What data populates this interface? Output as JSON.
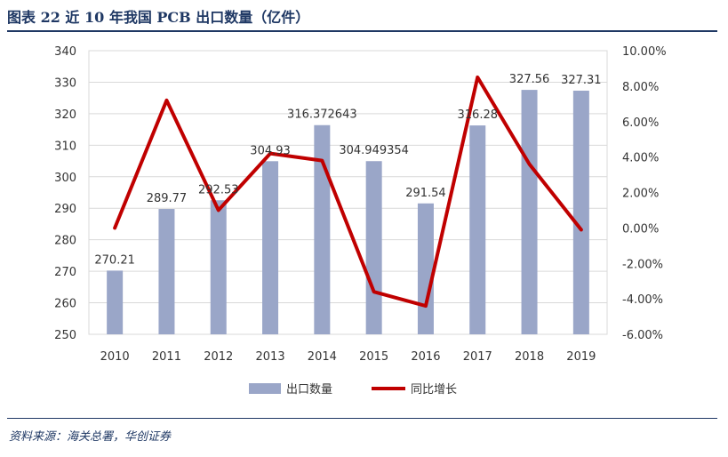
{
  "header": {
    "title": "图表 22  近 10 年我国 PCB 出口数量（亿件）"
  },
  "footer": {
    "source": "资料来源：海关总署，华创证券"
  },
  "chart_data": {
    "type": "bar",
    "categories": [
      "2010",
      "2011",
      "2012",
      "2013",
      "2014",
      "2015",
      "2016",
      "2017",
      "2018",
      "2019"
    ],
    "series": [
      {
        "name": "出口数量",
        "type": "bar",
        "axis": "left",
        "color": "#9aa6c8",
        "values": [
          270.21,
          289.77,
          292.53,
          304.93,
          316.372643,
          304.949354,
          291.54,
          316.28,
          327.56,
          327.31
        ],
        "labels": [
          "270.21",
          "289.77",
          "292.53",
          "304.93",
          "316.372643",
          "304.949354",
          "291.54",
          "316.28",
          "327.56",
          "327.31"
        ]
      },
      {
        "name": "同比增长",
        "type": "line",
        "axis": "right",
        "color": "#c00000",
        "values": [
          0.0,
          7.2,
          1.0,
          4.2,
          3.8,
          -3.6,
          -4.4,
          8.5,
          3.6,
          -0.1
        ]
      }
    ],
    "y_left": {
      "min": 250,
      "max": 340,
      "step": 10,
      "ticks": [
        "250",
        "260",
        "270",
        "280",
        "290",
        "300",
        "310",
        "320",
        "330",
        "340"
      ]
    },
    "y_right": {
      "min": -6,
      "max": 10,
      "step": 2,
      "ticks": [
        "-6.00%",
        "-4.00%",
        "-2.00%",
        "0.00%",
        "2.00%",
        "4.00%",
        "6.00%",
        "8.00%",
        "10.00%"
      ]
    },
    "grid": true,
    "legend": "bottom",
    "legend_items": [
      {
        "label": "出口数量",
        "kind": "bar",
        "color": "#9aa6c8"
      },
      {
        "label": "同比增长",
        "kind": "line",
        "color": "#c00000"
      }
    ]
  }
}
